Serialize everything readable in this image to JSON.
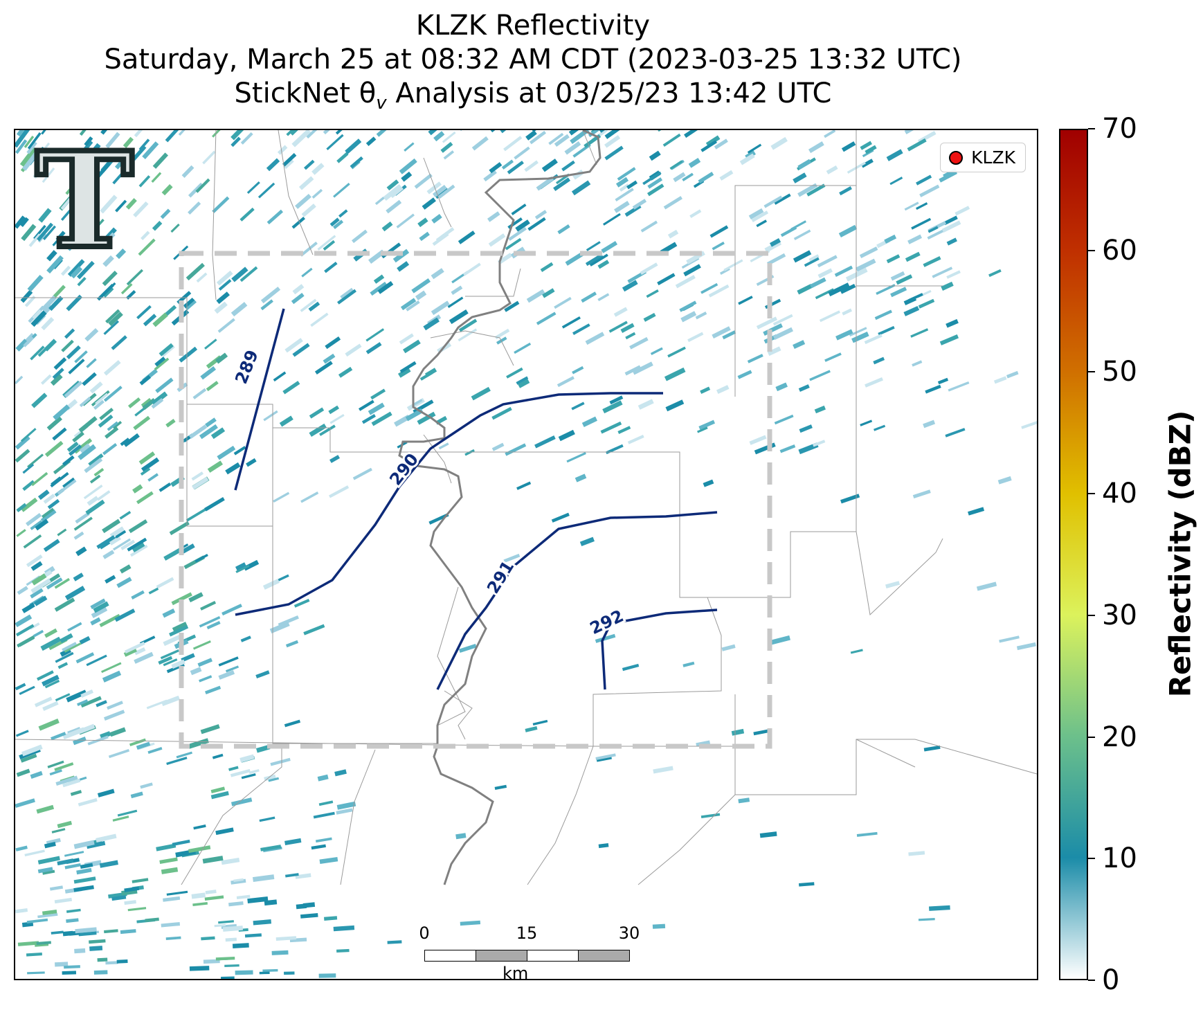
{
  "title": {
    "line1": "KLZK Reflectivity",
    "line2": "Saturday, March 25 at 08:32 AM CDT (2023-03-25 13:32 UTC)",
    "line3": "StickNet θ",
    "line3_sub": "v",
    "line3_rest": " Analysis at 03/25/23 13:42 UTC"
  },
  "legend": {
    "label": "KLZK",
    "marker_color": "#ee1111"
  },
  "colorbar": {
    "label": "Reflectivity (dBZ)",
    "ticks": [
      "0",
      "10",
      "20",
      "30",
      "40",
      "50",
      "60",
      "70"
    ],
    "min": 0,
    "max": 70,
    "colors": [
      "#ffffff",
      "#1b8ca8",
      "#6cc08b",
      "#dcf25c",
      "#e0c000",
      "#d07000",
      "#c03000",
      "#a00000"
    ]
  },
  "contours": [
    {
      "label": "289"
    },
    {
      "label": "290"
    },
    {
      "label": "291"
    },
    {
      "label": "292"
    }
  ],
  "scalebar": {
    "ticks": [
      "0",
      "15",
      "30"
    ],
    "unit": "km"
  },
  "colors": {
    "contour": "#0d2a78",
    "analysis_box": "#c8c8c8",
    "river": "#808080",
    "boundary": "#9a9a9a"
  },
  "logo": {
    "text": "T"
  }
}
